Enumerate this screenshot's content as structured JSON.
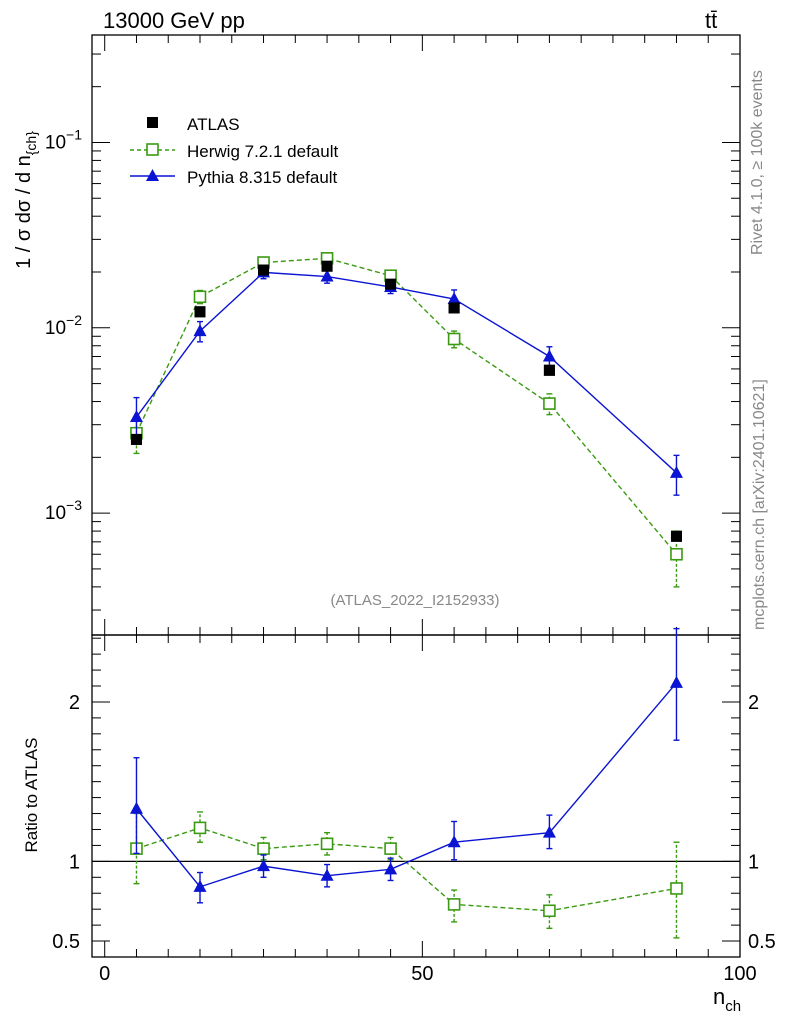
{
  "header": {
    "energy_label": "13000 GeV pp",
    "process_label": "tt̄"
  },
  "side_labels": {
    "rivet": "Rivet 4.1.0, ≥ 100k events",
    "source": "mcplots.cern.ch [arXiv:2401.10621]"
  },
  "analysis_id": "(ATLAS_2022_I2152933)",
  "colors": {
    "atlas": "#000000",
    "herwig": "#3a9a12",
    "pythia": "#0a14d2"
  },
  "chart_data": [
    {
      "type": "line",
      "panel": "main",
      "yscale": "log",
      "ylabel": "1 / σ dσ / d n",
      "ylabel_sub": "{ch}",
      "xlim": [
        -2,
        100
      ],
      "ylim": [
        0.00022,
        0.38
      ],
      "y_tick_labels": [
        "10",
        "10",
        "10"
      ],
      "y_tick_exponents": [
        "−1",
        "−2",
        "−3"
      ],
      "y_tick_values": [
        0.1,
        0.01,
        0.001
      ],
      "legend_position": "top-left",
      "series": [
        {
          "name": "ATLAS",
          "style": "data",
          "x": [
            5,
            15,
            25,
            35,
            45,
            55,
            70,
            90
          ],
          "y": [
            0.0025,
            0.0122,
            0.0205,
            0.0215,
            0.0172,
            0.0128,
            0.0059,
            0.00075
          ],
          "err": [
            0.0001,
            0.0004,
            0.0006,
            0.0006,
            0.0005,
            0.0004,
            0.0002,
            4e-05
          ]
        },
        {
          "name": "Herwig 7.2.1 default",
          "style": "dashed-open-square",
          "x": [
            5,
            15,
            25,
            35,
            45,
            55,
            70,
            90
          ],
          "y": [
            0.0027,
            0.0147,
            0.0225,
            0.0237,
            0.0191,
            0.0087,
            0.0039,
            0.0006
          ],
          "err_lo": [
            0.0006,
            0.0012,
            0.0014,
            0.0015,
            0.0013,
            0.0009,
            0.0005,
            0.0002
          ],
          "err_hi": [
            0.0006,
            0.0012,
            0.0014,
            0.0015,
            0.0013,
            0.0009,
            0.0005,
            0.0002
          ]
        },
        {
          "name": "Pythia 8.315 default",
          "style": "solid-triangle",
          "x": [
            5,
            15,
            25,
            35,
            45,
            55,
            70,
            90
          ],
          "y": [
            0.0033,
            0.0096,
            0.0199,
            0.0189,
            0.0166,
            0.0143,
            0.007,
            0.00165
          ],
          "err_lo": [
            0.0007,
            0.0012,
            0.0015,
            0.0015,
            0.0013,
            0.0015,
            0.0008,
            0.0004
          ],
          "err_hi": [
            0.0009,
            0.0012,
            0.0015,
            0.0015,
            0.0013,
            0.0017,
            0.0009,
            0.0004
          ]
        }
      ]
    },
    {
      "type": "line",
      "panel": "ratio",
      "ylabel": "Ratio to ATLAS",
      "xlabel": "n",
      "xlabel_sub": "ch",
      "xlim": [
        -2,
        100
      ],
      "ylim": [
        0.4,
        2.42
      ],
      "y_tick_labels": [
        "2",
        "1",
        "0.5"
      ],
      "y_tick_values": [
        2,
        1,
        0.5
      ],
      "x_tick_labels": [
        "0",
        "50",
        "100"
      ],
      "x_tick_values": [
        0,
        50,
        100
      ],
      "reference_line": 1,
      "series": [
        {
          "name": "Herwig 7.2.1 default",
          "style": "dashed-open-square",
          "x": [
            5,
            15,
            25,
            35,
            45,
            55,
            70,
            90
          ],
          "y": [
            1.08,
            1.21,
            1.08,
            1.11,
            1.08,
            0.73,
            0.69,
            0.83
          ],
          "err_lo": [
            0.22,
            0.09,
            0.07,
            0.07,
            0.07,
            0.11,
            0.11,
            0.31
          ],
          "err_hi": [
            0.22,
            0.1,
            0.07,
            0.07,
            0.07,
            0.09,
            0.1,
            0.29
          ]
        },
        {
          "name": "Pythia 8.315 default",
          "style": "solid-triangle",
          "x": [
            5,
            15,
            25,
            35,
            45,
            55,
            70,
            90
          ],
          "y": [
            1.33,
            0.84,
            0.97,
            0.91,
            0.95,
            1.12,
            1.18,
            2.12
          ],
          "err_lo": [
            0.28,
            0.1,
            0.07,
            0.07,
            0.07,
            0.11,
            0.1,
            0.36
          ],
          "err_hi": [
            0.32,
            0.09,
            0.07,
            0.07,
            0.07,
            0.13,
            0.11,
            0.34
          ]
        }
      ]
    }
  ]
}
